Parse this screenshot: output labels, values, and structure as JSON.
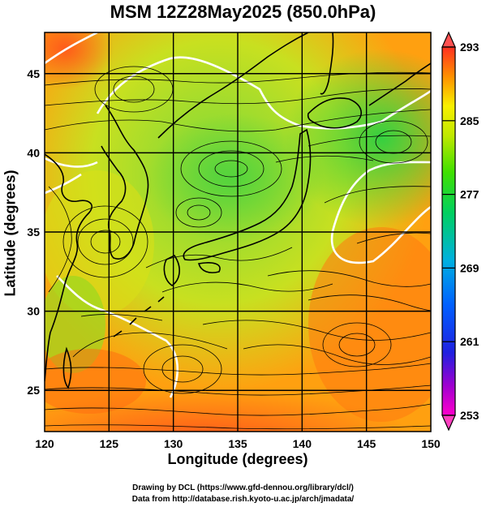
{
  "title": "MSM 12Z28May2025 (850.0hPa)",
  "xlabel": "Longitude (degrees)",
  "ylabel": "Latitude  (degrees)",
  "credit_line1": "Drawing by DCL (https://www.gfd-dennou.org/library/dcl/)",
  "credit_line2": "Data from http://database.rish.kyoto-u.ac.jp/arch/jmadata/",
  "map": {
    "lon_range": [
      120,
      150
    ],
    "lat_range": [
      22.4,
      47.6
    ],
    "lon_ticks": [
      120,
      125,
      130,
      135,
      140,
      145,
      150
    ],
    "lat_ticks": [
      25,
      30,
      35,
      40,
      45
    ],
    "grid": true
  },
  "colorbar": {
    "min": 253,
    "max": 293,
    "tick_labels": [
      "293",
      "285",
      "277",
      "269",
      "261",
      "253"
    ],
    "tick_values": [
      293,
      285,
      277,
      269,
      261,
      253
    ],
    "colors": [
      "#ff00cc",
      "#8a2be2",
      "#0000ff",
      "#0080ff",
      "#00c0c0",
      "#00d070",
      "#30e000",
      "#a0e000",
      "#f0f000",
      "#ffa000",
      "#ff5000",
      "#ff2020"
    ]
  }
}
